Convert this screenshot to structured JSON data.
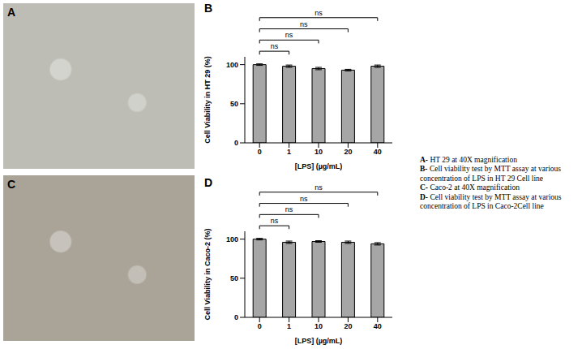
{
  "chart_data": [
    {
      "panel": "B",
      "type": "bar",
      "y_label": "Cell Viability in HT 29 (%)",
      "x_label": "[LPS] (µg/mL)",
      "categories": [
        "0",
        "1",
        "10",
        "20",
        "40"
      ],
      "values": [
        100,
        98,
        95,
        93,
        98
      ],
      "errors": [
        1,
        1.5,
        1.5,
        1,
        1.5
      ],
      "color": "#a6a6a6",
      "ylim": [
        0,
        110
      ],
      "yticks": [
        0,
        50,
        100
      ],
      "comparisons": [
        {
          "from": "0",
          "to": "1",
          "label": "ns"
        },
        {
          "from": "0",
          "to": "10",
          "label": "ns"
        },
        {
          "from": "0",
          "to": "20",
          "label": "ns"
        },
        {
          "from": "0",
          "to": "40",
          "label": "ns"
        }
      ]
    },
    {
      "panel": "D",
      "type": "bar",
      "y_label": "Cell Viability in Caco-2 (%)",
      "x_label": "[LPS] (µg/mL)",
      "categories": [
        "0",
        "1",
        "10",
        "20",
        "40"
      ],
      "values": [
        100,
        96,
        97,
        96,
        94
      ],
      "errors": [
        1,
        1.5,
        1,
        1.5,
        1.5
      ],
      "color": "#a6a6a6",
      "ylim": [
        0,
        110
      ],
      "yticks": [
        0,
        50,
        100
      ],
      "comparisons": [
        {
          "from": "0",
          "to": "1",
          "label": "ns"
        },
        {
          "from": "0",
          "to": "10",
          "label": "ns"
        },
        {
          "from": "0",
          "to": "20",
          "label": "ns"
        },
        {
          "from": "0",
          "to": "40",
          "label": "ns"
        }
      ]
    }
  ],
  "images": [
    {
      "panel": "A"
    },
    {
      "panel": "C"
    }
  ],
  "caption": [
    {
      "label": "A-",
      "text": "HT 29 at 40X magnification"
    },
    {
      "label": "B-",
      "text": "Cell viability test by MTT assay at various concentration of LPS in HT 29 Cell line"
    },
    {
      "label": "C-",
      "text": "Caco-2 at 40X magnification"
    },
    {
      "label": "D-",
      "text": "Cell viability test by MTT assay at various concentration of LPS in Caco-2Cell line"
    }
  ]
}
